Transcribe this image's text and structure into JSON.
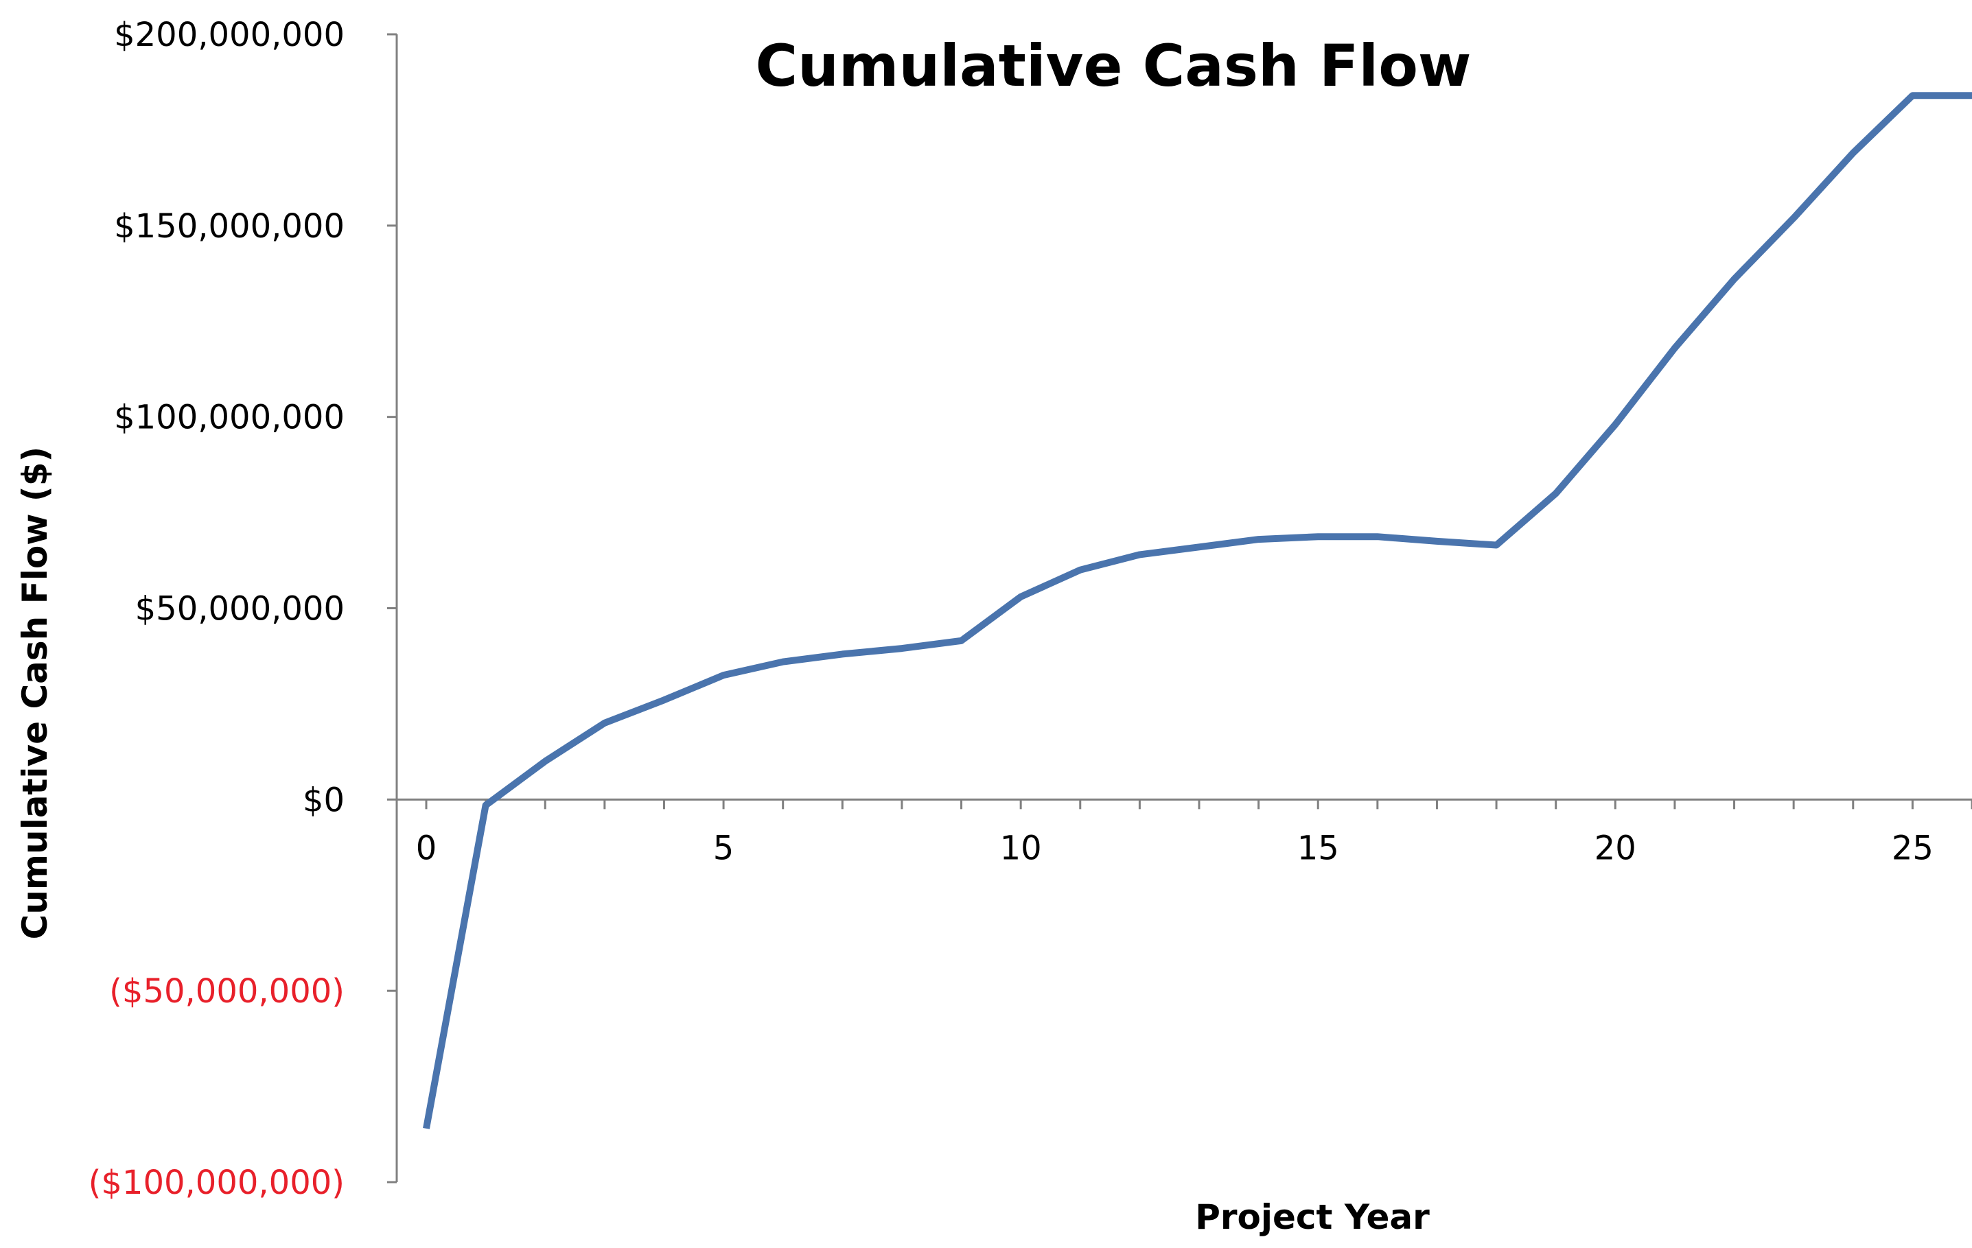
{
  "chart_data": {
    "type": "line",
    "title": "Cumulative Cash Flow",
    "xlabel": "Project Year",
    "ylabel": "Cumulative Cash Flow ($)",
    "xlim": [
      0,
      26
    ],
    "ylim": [
      -100000000,
      200000000
    ],
    "x_ticks": [
      0,
      5,
      10,
      15,
      20,
      25
    ],
    "x_tick_labels": [
      "0",
      "5",
      "10",
      "15",
      "20",
      "25"
    ],
    "x_minor_tick_step": 1,
    "y_ticks": [
      -100000000,
      -50000000,
      0,
      50000000,
      100000000,
      150000000,
      200000000
    ],
    "y_tick_labels": [
      "($100,000,000)",
      "($50,000,000)",
      "$0",
      "$50,000,000",
      "$100,000,000",
      "$150,000,000",
      "$200,000,000"
    ],
    "negative_label_color": "#e8202a",
    "positive_label_color": "#000000",
    "grid": false,
    "legend": "none",
    "series": [
      {
        "color": "#4a74ad",
        "x": [
          0,
          1,
          2,
          3,
          4,
          5,
          6,
          7,
          8,
          9,
          10,
          11,
          12,
          13,
          14,
          15,
          16,
          17,
          18,
          19,
          20,
          21,
          22,
          23,
          24,
          25,
          26
        ],
        "y": [
          -86000000,
          -1500000,
          10000000,
          20000000,
          26000000,
          32500000,
          36000000,
          38000000,
          39500000,
          41500000,
          53000000,
          60000000,
          64000000,
          66000000,
          68000000,
          68700000,
          68700000,
          67500000,
          66500000,
          80000000,
          98000000,
          118000000,
          136000000,
          152000000,
          169000000,
          184000000,
          184000000
        ]
      }
    ]
  }
}
